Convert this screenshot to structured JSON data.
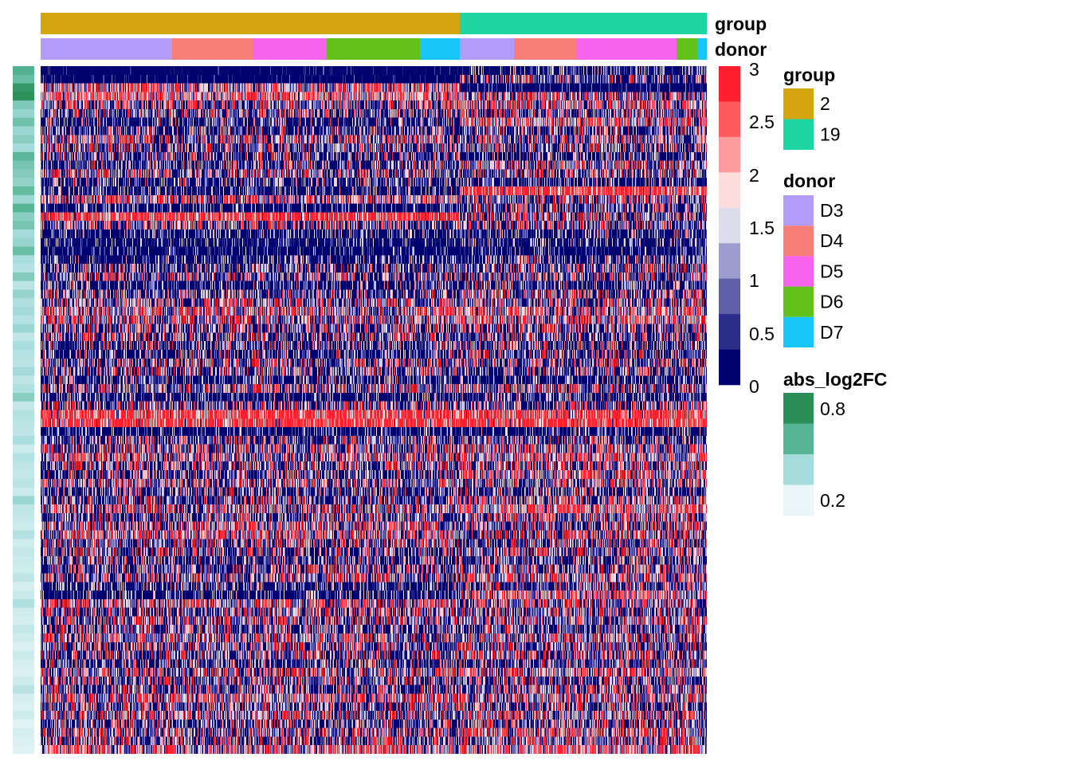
{
  "chart_data": {
    "type": "heatmap",
    "title": "",
    "n_genes": 80,
    "n_cells": 836,
    "column_annotations": {
      "group": {
        "title": "group",
        "levels": [
          "2",
          "19"
        ],
        "colors": [
          "#D4A50E",
          "#1DD6A3"
        ],
        "segments": [
          {
            "level": "2",
            "cells": 526
          },
          {
            "level": "19",
            "cells": 310
          }
        ]
      },
      "donor": {
        "title": "donor",
        "levels": [
          "D3",
          "D4",
          "D5",
          "D6",
          "D7"
        ],
        "colors": [
          "#B39BFA",
          "#F77F78",
          "#F863EE",
          "#63C21A",
          "#18C6F9"
        ],
        "segments": [
          {
            "level": "D3",
            "cells": 165
          },
          {
            "level": "D4",
            "cells": 102
          },
          {
            "level": "D5",
            "cells": 92
          },
          {
            "level": "D6",
            "cells": 117
          },
          {
            "level": "D7",
            "cells": 50
          },
          {
            "level": "D3",
            "cells": 68
          },
          {
            "level": "D4",
            "cells": 78
          },
          {
            "level": "D5",
            "cells": 126
          },
          {
            "level": "D6",
            "cells": 26
          },
          {
            "level": "D7",
            "cells": 12
          }
        ]
      }
    },
    "expression_scale": {
      "min": 0,
      "max": 3,
      "ticks": [
        "3",
        "2.5",
        "2",
        "1.5",
        "1",
        "0.5",
        "0"
      ],
      "bin_colors": [
        "#FF1E2D",
        "#FF5A5E",
        "#FD9B9E",
        "#FDDCDC",
        "#DCDCEB",
        "#9C9CCE",
        "#5E5EA9",
        "#2C2C89",
        "#020270"
      ]
    },
    "row_annotation": {
      "title": "abs_log2FC",
      "range": [
        0.1,
        0.9
      ],
      "ticks": [
        "0.8",
        "0.2"
      ],
      "bin_colors": [
        "#2A8E57",
        "#57B595",
        "#A7DCDC",
        "#EAF6F9"
      ],
      "values": [
        0.62,
        0.55,
        0.82,
        0.88,
        0.48,
        0.4,
        0.52,
        0.38,
        0.44,
        0.36,
        0.58,
        0.5,
        0.46,
        0.42,
        0.56,
        0.38,
        0.6,
        0.44,
        0.5,
        0.36,
        0.4,
        0.54,
        0.34,
        0.3,
        0.46,
        0.28,
        0.4,
        0.32,
        0.36,
        0.3,
        0.38,
        0.26,
        0.34,
        0.3,
        0.28,
        0.36,
        0.26,
        0.32,
        0.44,
        0.24,
        0.3,
        0.28,
        0.26,
        0.34,
        0.22,
        0.3,
        0.26,
        0.24,
        0.28,
        0.22,
        0.38,
        0.26,
        0.24,
        0.22,
        0.3,
        0.2,
        0.24,
        0.22,
        0.2,
        0.26,
        0.18,
        0.22,
        0.32,
        0.2,
        0.18,
        0.24,
        0.2,
        0.16,
        0.22,
        0.18,
        0.16,
        0.2,
        0.28,
        0.18,
        0.16,
        0.2,
        0.14,
        0.18,
        0.16,
        0.14
      ]
    },
    "row_expression_profile": {
      "note": "approximate mean expression per gene row for group 2 and group 19 cells (rows top to bottom, 80 rows)",
      "group_2": [
        0.05,
        0.1,
        1.3,
        1.4,
        1.0,
        0.9,
        0.6,
        0.7,
        1.1,
        0.9,
        0.8,
        0.7,
        1.0,
        0.7,
        0.5,
        1.2,
        0.4,
        2.7,
        0.9,
        0.5,
        0.4,
        0.3,
        0.5,
        0.7,
        0.9,
        0.6,
        0.8,
        1.0,
        1.2,
        1.1,
        0.9,
        0.9,
        0.8,
        0.7,
        1.0,
        0.9,
        0.6,
        1.0,
        0.5,
        0.9,
        2.6,
        2.9,
        0.4,
        0.8,
        1.0,
        1.1,
        0.9,
        0.8,
        1.1,
        0.7,
        0.8,
        1.0,
        0.8,
        1.1,
        1.2,
        0.9,
        0.9,
        0.7,
        0.8,
        1.0,
        0.6,
        0.5,
        1.2,
        0.9,
        1.0,
        0.8,
        1.1,
        0.9,
        0.8,
        0.7,
        1.0,
        0.9,
        0.8,
        1.2,
        0.9,
        1.0,
        0.8,
        1.0,
        0.9,
        1.3
      ],
      "group_19": [
        0.5,
        0.8,
        0.2,
        1.0,
        1.2,
        0.9,
        1.3,
        0.8,
        1.0,
        0.8,
        0.6,
        1.1,
        0.9,
        0.6,
        2.8,
        1.0,
        0.8,
        0.9,
        0.9,
        0.6,
        0.5,
        0.4,
        0.7,
        0.8,
        0.9,
        0.6,
        0.9,
        1.0,
        1.2,
        1.3,
        0.9,
        0.8,
        0.8,
        0.9,
        0.9,
        0.8,
        0.5,
        1.0,
        0.6,
        0.9,
        2.6,
        2.8,
        0.5,
        0.8,
        1.1,
        1.3,
        1.0,
        1.2,
        1.0,
        0.7,
        1.1,
        1.4,
        1.0,
        0.9,
        1.0,
        0.9,
        1.0,
        0.7,
        0.9,
        1.2,
        0.9,
        1.3,
        1.0,
        0.9,
        1.1,
        0.8,
        1.1,
        0.9,
        1.0,
        0.8,
        1.2,
        0.9,
        1.0,
        1.2,
        0.9,
        1.1,
        0.9,
        1.2,
        1.0,
        1.4
      ]
    }
  }
}
